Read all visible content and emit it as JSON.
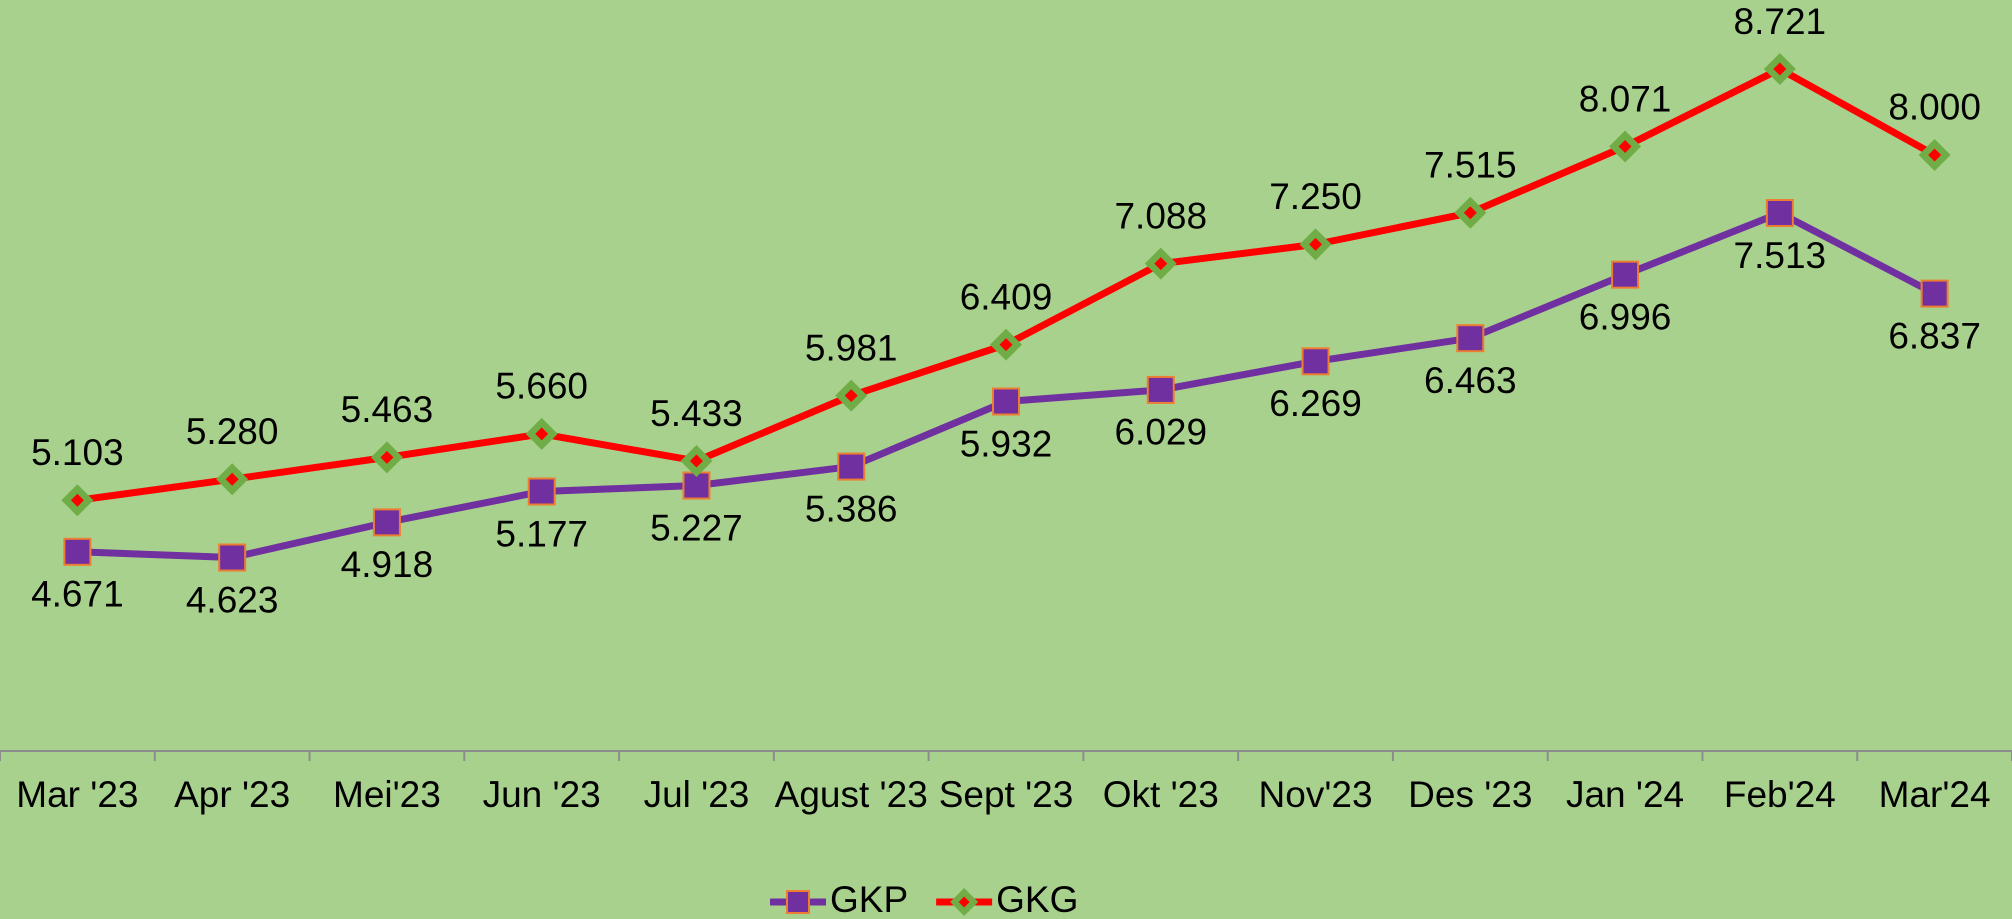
{
  "chart_data": {
    "type": "line",
    "categories": [
      "Mar '23",
      "Apr '23",
      "Mei'23",
      "Jun '23",
      "Jul '23",
      "Agust '23",
      "Sept '23",
      "Okt '23",
      "Nov'23",
      "Des '23",
      "Jan '24",
      "Feb'24",
      "Mar'24"
    ],
    "ylim": [
      3,
      9.3
    ],
    "legend": "bottom",
    "series": [
      {
        "name": "GKP",
        "color": "#7030a0",
        "marker": "square",
        "values": [
          4.671,
          4.623,
          4.918,
          5.177,
          5.227,
          5.386,
          5.932,
          6.029,
          6.269,
          6.463,
          6.996,
          7.513,
          6.837
        ],
        "value_labels": [
          "4.671",
          "4.623",
          "4.918",
          "5.177",
          "5.227",
          "5.386",
          "5.932",
          "6.029",
          "6.269",
          "6.463",
          "6.996",
          "7.513",
          "6.837"
        ]
      },
      {
        "name": "GKG",
        "color": "#ff0000",
        "marker": "diamond",
        "values": [
          5.103,
          5.28,
          5.463,
          5.66,
          5.433,
          5.981,
          6.409,
          7.088,
          7.25,
          7.515,
          8.071,
          8.721,
          8.0
        ],
        "value_labels": [
          "5.103",
          "5.280",
          "5.463",
          "5.660",
          "5.433",
          "5.981",
          "6.409",
          "7.088",
          "7.250",
          "7.515",
          "8.071",
          "8.721",
          "8.000"
        ]
      }
    ]
  }
}
